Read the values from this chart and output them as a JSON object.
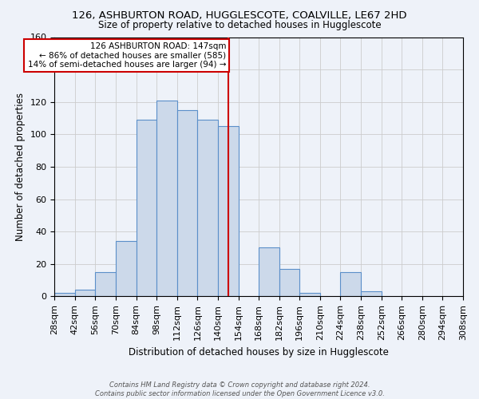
{
  "title": "126, ASHBURTON ROAD, HUGGLESCOTE, COALVILLE, LE67 2HD",
  "subtitle": "Size of property relative to detached houses in Hugglescote",
  "xlabel": "Distribution of detached houses by size in Hugglescote",
  "ylabel": "Number of detached properties",
  "bar_edges": [
    28,
    42,
    56,
    70,
    84,
    98,
    112,
    126,
    140,
    154,
    168,
    182,
    196,
    210,
    224,
    238,
    252,
    266,
    280,
    294,
    308
  ],
  "bar_heights": [
    2,
    4,
    15,
    34,
    109,
    121,
    115,
    109,
    105,
    0,
    30,
    17,
    2,
    0,
    15,
    3,
    0,
    0,
    0,
    0
  ],
  "bar_color": "#ccd9ea",
  "bar_edge_color": "#5b8fc9",
  "bar_linewidth": 0.8,
  "ylim": [
    0,
    160
  ],
  "property_value": 147,
  "vline_color": "#cc0000",
  "annotation_text_line1": "126 ASHBURTON ROAD: 147sqm",
  "annotation_text_line2": "← 86% of detached houses are smaller (585)",
  "annotation_text_line3": "14% of semi-detached houses are larger (94) →",
  "grid_color": "#cccccc",
  "background_color": "#eef2f9",
  "footnote1": "Contains HM Land Registry data © Crown copyright and database right 2024.",
  "footnote2": "Contains public sector information licensed under the Open Government Licence v3.0.",
  "tick_labels": [
    "28sqm",
    "42sqm",
    "56sqm",
    "70sqm",
    "84sqm",
    "98sqm",
    "112sqm",
    "126sqm",
    "140sqm",
    "154sqm",
    "168sqm",
    "182sqm",
    "196sqm",
    "210sqm",
    "224sqm",
    "238sqm",
    "252sqm",
    "266sqm",
    "280sqm",
    "294sqm",
    "308sqm"
  ]
}
